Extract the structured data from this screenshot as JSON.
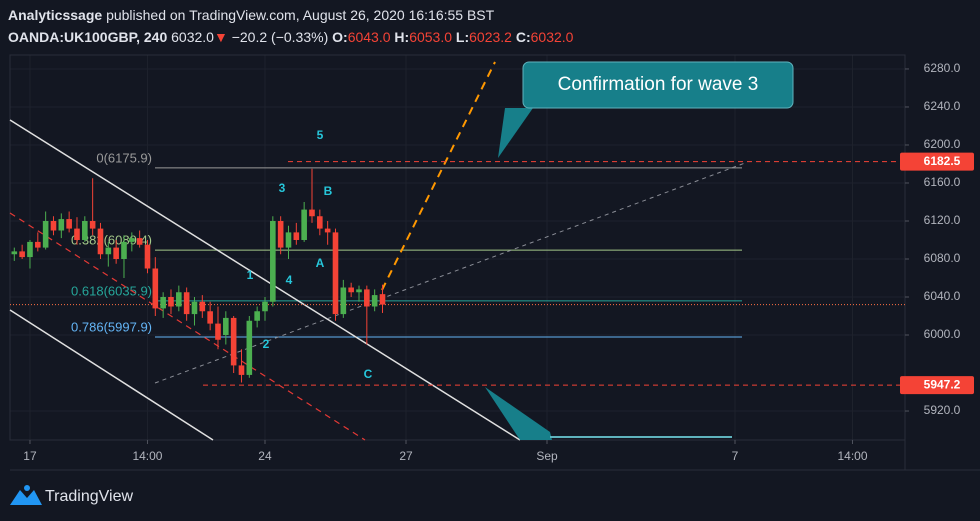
{
  "header": {
    "publisher": "Analyticssage",
    "published_text": "published on TradingView.com, August 26, 2020 16:16:55 BST",
    "symbol": "OANDA:UK100GBP, 240",
    "last": "6032.0",
    "arrow": "▼",
    "change": "−20.2 (−0.33%)",
    "o_label": "O:",
    "o": "6043.0",
    "h_label": "H:",
    "h": "6053.0",
    "l_label": "L:",
    "l": "6023.2",
    "c_label": "C:",
    "c": "6032.0"
  },
  "chart_data": {
    "type": "candlestick",
    "x": [
      -2,
      -1,
      0,
      1,
      2,
      3,
      4,
      5,
      6,
      7,
      8,
      9,
      10,
      11,
      12,
      13,
      14,
      15,
      16,
      17,
      18,
      19,
      20,
      21,
      22,
      23,
      24,
      25,
      26,
      27,
      28,
      29,
      30,
      31,
      32,
      33,
      34,
      35,
      36,
      37,
      38,
      39,
      40,
      41,
      42,
      43,
      44,
      45
    ],
    "open": [
      6085,
      6088,
      6082,
      6098,
      6092,
      6120,
      6110,
      6122,
      6112,
      6100,
      6120,
      6112,
      6085,
      6092,
      6080,
      6098,
      6102,
      6095,
      6070,
      6028,
      6040,
      6030,
      6045,
      6022,
      6035,
      6025,
      6012,
      6000,
      6018,
      5968,
      5958,
      6015,
      6025,
      6035,
      6120,
      6092,
      6108,
      6100,
      6132,
      6125,
      6112,
      6108,
      6022,
      6050,
      6045,
      6048,
      6030,
      6043
    ],
    "high": [
      6092,
      6095,
      6100,
      6108,
      6130,
      6125,
      6128,
      6130,
      6124,
      6125,
      6165,
      6118,
      6098,
      6100,
      6105,
      6108,
      6110,
      6100,
      6082,
      6045,
      6048,
      6052,
      6050,
      6040,
      6042,
      6035,
      6030,
      6025,
      6020,
      5985,
      6020,
      6030,
      6040,
      6125,
      6125,
      6115,
      6118,
      6140,
      6175,
      6132,
      6120,
      6112,
      6058,
      6055,
      6052,
      6052,
      6048,
      6053
    ],
    "low": [
      6078,
      6080,
      6070,
      6088,
      6090,
      6105,
      6102,
      6108,
      6095,
      6098,
      6105,
      6080,
      6072,
      6075,
      6060,
      6088,
      6092,
      6065,
      6020,
      6018,
      6022,
      6025,
      6015,
      6010,
      6018,
      6005,
      5985,
      5990,
      5960,
      5950,
      5955,
      6008,
      6015,
      6030,
      6085,
      6080,
      6095,
      6098,
      6118,
      6105,
      6095,
      6015,
      6018,
      6040,
      6035,
      5990,
      6025,
      6023.2
    ],
    "close": [
      6088,
      6082,
      6098,
      6092,
      6120,
      6110,
      6122,
      6112,
      6100,
      6120,
      6112,
      6085,
      6092,
      6080,
      6098,
      6102,
      6095,
      6070,
      6028,
      6040,
      6030,
      6045,
      6022,
      6035,
      6025,
      6012,
      5995,
      6018,
      5968,
      5958,
      6015,
      6025,
      6035,
      6120,
      6092,
      6108,
      6100,
      6132,
      6125,
      6112,
      6108,
      6022,
      6050,
      6045,
      6048,
      6030,
      6042,
      6032
    ],
    "up_color": "#4caf50",
    "down_color": "#f44336",
    "xlim": [
      -2.55,
      111.7
    ],
    "xticks": [
      {
        "value": 0,
        "label": "17"
      },
      {
        "value": 15,
        "label": "14:00"
      },
      {
        "value": 30,
        "label": "24"
      },
      {
        "value": 48,
        "label": "27"
      },
      {
        "value": 66,
        "label": "Sep"
      },
      {
        "value": 90,
        "label": "7"
      },
      {
        "value": 105,
        "label": "14:00"
      }
    ],
    "ylim": [
      5889.5,
      6294.7
    ],
    "yticks": [
      {
        "value": 5920,
        "label": "5920.0"
      },
      {
        "value": 6000,
        "label": "6000.0"
      },
      {
        "value": 6040,
        "label": "6040.0"
      },
      {
        "value": 6080,
        "label": "6080.0"
      },
      {
        "value": 6120,
        "label": "6120.0"
      },
      {
        "value": 6160,
        "label": "6160.0"
      },
      {
        "value": 6200,
        "label": "6200.0"
      },
      {
        "value": 6240,
        "label": "6240.0"
      },
      {
        "value": 6280,
        "label": "6280.0"
      }
    ],
    "grid": true,
    "levels": [
      {
        "value": 6182.5,
        "label": "6182.5"
      },
      {
        "value": 5947.2,
        "label": "5947.2"
      }
    ],
    "fib_levels": [
      {
        "value": 6175.9,
        "label": "0(6175.9)",
        "color": "#9a9a9a"
      },
      {
        "value": 6089.4,
        "label": "0.382(6089.4)",
        "color": "#a5c98a"
      },
      {
        "value": 6035.9,
        "label": "0.618(6035.9)",
        "color": "#26a69a"
      },
      {
        "value": 5997.9,
        "label": "0.786(5997.9)",
        "color": "#64b5f6"
      }
    ],
    "wave_labels": [
      "5",
      "3",
      "B",
      "1",
      "4",
      "A",
      "2",
      "C"
    ],
    "callout": "Confirmation for wave 3"
  },
  "footer": {
    "brand": "TradingView"
  }
}
